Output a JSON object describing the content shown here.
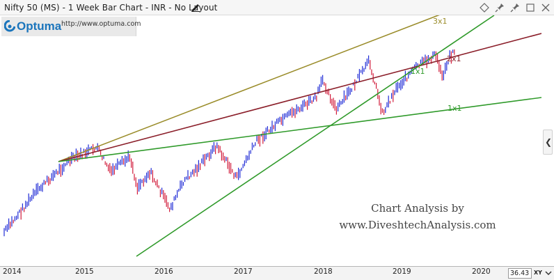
{
  "window": {
    "title": "Nifty 50 (MS) - 1 Week Bar Chart - INR - No Layout",
    "edit_icon": "pencil-icon",
    "icons": [
      "diamond-icon",
      "pin-icon",
      "pin-icon",
      "maximize-icon",
      "close-icon"
    ]
  },
  "logo": {
    "name": "Optuma",
    "url": "http://www.optuma.com"
  },
  "watermark": {
    "line1": "Chart Analysis by",
    "line2": "www.DiveshtechAnalysis.com"
  },
  "axis": {
    "years": [
      "2014",
      "2015",
      "2016",
      "2017",
      "2018",
      "2019",
      "2020"
    ],
    "price_readout": "36.43",
    "xy_label": "XY"
  },
  "colors": {
    "bar_up": "#1f2bd6",
    "bar_down": "#d11a3a",
    "line_3x1": "#9a8c2a",
    "line_2x1": "#8b1f2a",
    "line_1x1": "#2f9a2a"
  },
  "chart_data": {
    "type": "bar",
    "instrument": "Nifty 50 (MS)",
    "period": "1 Week",
    "currency": "INR",
    "x_range": [
      "2014",
      "2020"
    ],
    "price_path": [
      {
        "date": "2014-01",
        "value": 6150
      },
      {
        "date": "2014-06",
        "value": 7500
      },
      {
        "date": "2014-11",
        "value": 8500
      },
      {
        "date": "2015-03",
        "value": 8900
      },
      {
        "date": "2015-05",
        "value": 8100
      },
      {
        "date": "2015-08",
        "value": 8600
      },
      {
        "date": "2015-09",
        "value": 7600
      },
      {
        "date": "2015-11",
        "value": 8100
      },
      {
        "date": "2016-02",
        "value": 6900
      },
      {
        "date": "2016-04",
        "value": 7800
      },
      {
        "date": "2016-06",
        "value": 8200
      },
      {
        "date": "2016-09",
        "value": 8950
      },
      {
        "date": "2016-12",
        "value": 7900
      },
      {
        "date": "2017-03",
        "value": 9100
      },
      {
        "date": "2017-06",
        "value": 9650
      },
      {
        "date": "2017-09",
        "value": 10100
      },
      {
        "date": "2017-12",
        "value": 10500
      },
      {
        "date": "2018-01",
        "value": 11100
      },
      {
        "date": "2018-03",
        "value": 10100
      },
      {
        "date": "2018-05",
        "value": 10700
      },
      {
        "date": "2018-08",
        "value": 11700
      },
      {
        "date": "2018-10",
        "value": 10000
      },
      {
        "date": "2018-12",
        "value": 10800
      },
      {
        "date": "2019-03",
        "value": 11500
      },
      {
        "date": "2019-06",
        "value": 11900
      },
      {
        "date": "2019-07",
        "value": 11200
      },
      {
        "date": "2019-08",
        "value": 11800
      },
      {
        "date": "2019-09",
        "value": 12100
      }
    ],
    "gann_fan_labels": [
      "3x1",
      "2x1",
      "1x1",
      "1x1"
    ]
  }
}
